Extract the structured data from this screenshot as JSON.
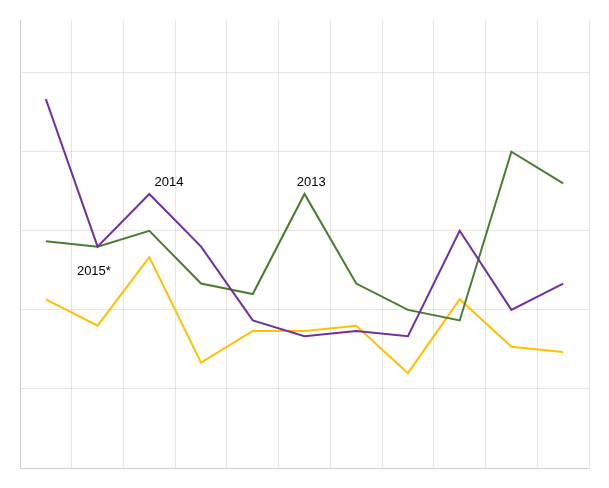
{
  "chart_data": {
    "type": "line",
    "x": [
      1,
      2,
      3,
      4,
      5,
      6,
      7,
      8,
      9,
      10,
      11
    ],
    "series": [
      {
        "color": "#7030a0",
        "values": [
          100,
          72,
          82,
          72,
          58,
          55,
          56,
          55,
          75,
          60,
          65
        ]
      },
      {
        "color": "#4a7c2f",
        "values": [
          73,
          72,
          75,
          65,
          63,
          82,
          65,
          60,
          58,
          90,
          84
        ]
      },
      {
        "color": "#ffc000",
        "values": [
          62,
          57,
          70,
          50,
          56,
          56,
          57,
          48,
          62,
          53,
          52
        ]
      }
    ],
    "xlim": [
      0.5,
      11.5
    ],
    "xticks": [
      0.5,
      1.5,
      2.5,
      3.5,
      4.5,
      5.5,
      6.5,
      7.5,
      8.5,
      9.5,
      10.5,
      11.5
    ],
    "ylim": [
      30,
      115
    ],
    "yticks": [
      30,
      45,
      60,
      75,
      90,
      105
    ],
    "grid": true,
    "tick_labels": false,
    "annotations": [
      {
        "text": "2014",
        "x": 3.1,
        "y": 83
      },
      {
        "text": "2013",
        "x": 5.85,
        "y": 83
      },
      {
        "text": "2015*",
        "x": 1.6,
        "y": 66
      }
    ]
  }
}
